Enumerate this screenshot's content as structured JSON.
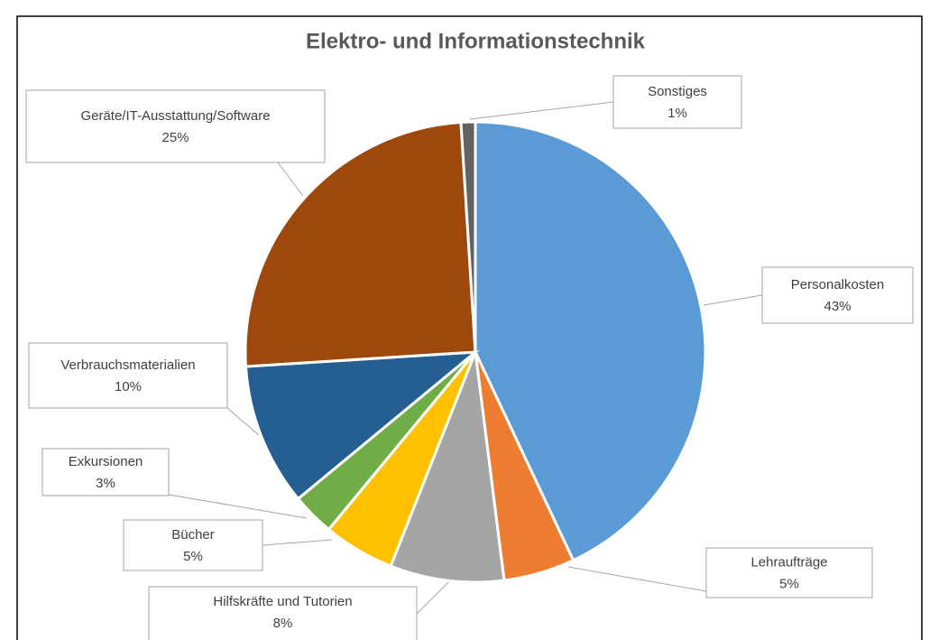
{
  "chart_data": {
    "type": "pie",
    "title": "Elektro- und Informationstechnik",
    "categories": [
      "Personalkosten",
      "Lehraufträge",
      "Hilfskräfte und Tutorien",
      "Bücher",
      "Exkursionen",
      "Verbrauchsmaterialien",
      "Geräte/IT-Ausstattung/Software",
      "Sonstiges"
    ],
    "values": [
      43,
      5,
      8,
      5,
      3,
      10,
      25,
      1
    ],
    "value_labels": [
      "43%",
      "5%",
      "8%",
      "5%",
      "3%",
      "10%",
      "25%",
      "1%"
    ],
    "colors": [
      "#5b9bd5",
      "#ed7d31",
      "#a5a5a5",
      "#ffc000",
      "#70ad47",
      "#255e91",
      "#9e480e",
      "#636363"
    ]
  }
}
